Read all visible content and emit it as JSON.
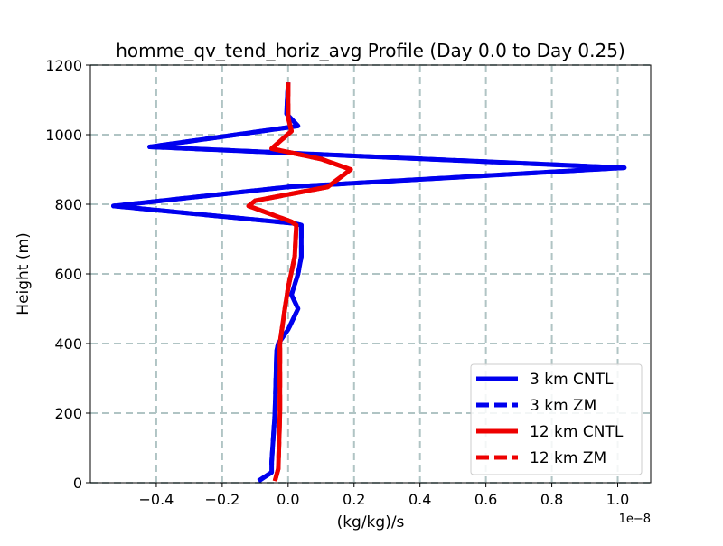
{
  "chart_data": {
    "type": "line",
    "title": "homme_qv_tend_horiz_avg Profile (Day 0.0 to Day 0.25)",
    "xlabel": "(kg/kg)/s",
    "ylabel": "Height (m)",
    "x_offset_label": "1e−8",
    "xlim": [
      -0.6,
      1.1
    ],
    "ylim": [
      0,
      1200
    ],
    "x_ticks": [
      -0.4,
      -0.2,
      0.0,
      0.2,
      0.4,
      0.6,
      0.8,
      1.0
    ],
    "x_tick_labels": [
      "−0.4",
      "−0.2",
      "0.0",
      "0.2",
      "0.4",
      "0.6",
      "0.8",
      "1.0"
    ],
    "y_ticks": [
      0,
      200,
      400,
      600,
      800,
      1000,
      1200
    ],
    "y_tick_labels": [
      "0",
      "200",
      "400",
      "600",
      "800",
      "1000",
      "1200"
    ],
    "grid": true,
    "legend_position": "lower-right",
    "colors": {
      "blue": "#0000ee",
      "red": "#ee0000",
      "grid": "#b0c4c4"
    },
    "series": [
      {
        "name": "3 km CNTL",
        "style": "solid",
        "color": "#0000ee",
        "points": [
          [
            -0.09,
            5
          ],
          [
            -0.05,
            30
          ],
          [
            -0.05,
            60
          ],
          [
            -0.04,
            200
          ],
          [
            -0.035,
            380
          ],
          [
            -0.03,
            400
          ],
          [
            0.0,
            440
          ],
          [
            0.03,
            500
          ],
          [
            0.01,
            540
          ],
          [
            0.03,
            600
          ],
          [
            0.04,
            650
          ],
          [
            0.04,
            740
          ],
          [
            0.02,
            745
          ],
          [
            -0.53,
            795
          ],
          [
            0.0,
            850
          ],
          [
            1.02,
            905
          ],
          [
            -0.42,
            965
          ],
          [
            0.03,
            1025
          ],
          [
            -0.005,
            1060
          ],
          [
            0.0,
            1150
          ]
        ]
      },
      {
        "name": "3 km ZM",
        "style": "dashed",
        "color": "#0000ee",
        "points": [
          [
            -0.09,
            5
          ],
          [
            -0.05,
            30
          ],
          [
            -0.05,
            60
          ],
          [
            -0.04,
            200
          ],
          [
            -0.035,
            380
          ],
          [
            -0.03,
            400
          ],
          [
            0.0,
            440
          ],
          [
            0.03,
            500
          ],
          [
            0.01,
            540
          ],
          [
            0.03,
            600
          ],
          [
            0.04,
            650
          ],
          [
            0.04,
            740
          ],
          [
            0.02,
            745
          ],
          [
            -0.53,
            795
          ],
          [
            0.0,
            850
          ],
          [
            1.02,
            905
          ],
          [
            -0.42,
            965
          ],
          [
            0.03,
            1025
          ],
          [
            -0.005,
            1060
          ],
          [
            0.0,
            1150
          ]
        ]
      },
      {
        "name": "12 km CNTL",
        "style": "solid",
        "color": "#ee0000",
        "points": [
          [
            -0.04,
            5
          ],
          [
            -0.03,
            40
          ],
          [
            -0.025,
            200
          ],
          [
            -0.025,
            400
          ],
          [
            -0.01,
            500
          ],
          [
            0.0,
            560
          ],
          [
            0.02,
            650
          ],
          [
            0.025,
            740
          ],
          [
            0.01,
            750
          ],
          [
            -0.12,
            795
          ],
          [
            -0.1,
            810
          ],
          [
            0.12,
            850
          ],
          [
            0.19,
            900
          ],
          [
            0.1,
            930
          ],
          [
            -0.05,
            960
          ],
          [
            -0.02,
            985
          ],
          [
            0.01,
            1010
          ],
          [
            0.0,
            1050
          ],
          [
            0.0,
            1150
          ]
        ]
      },
      {
        "name": "12 km ZM",
        "style": "dashed",
        "color": "#ee0000",
        "points": [
          [
            -0.04,
            5
          ],
          [
            -0.03,
            40
          ],
          [
            -0.025,
            200
          ],
          [
            -0.025,
            400
          ],
          [
            -0.01,
            500
          ],
          [
            0.0,
            560
          ],
          [
            0.02,
            650
          ],
          [
            0.025,
            740
          ],
          [
            0.01,
            750
          ],
          [
            -0.12,
            795
          ],
          [
            -0.1,
            810
          ],
          [
            0.12,
            850
          ],
          [
            0.19,
            900
          ],
          [
            0.1,
            930
          ],
          [
            -0.05,
            960
          ],
          [
            -0.02,
            985
          ],
          [
            0.01,
            1010
          ],
          [
            0.0,
            1050
          ],
          [
            0.0,
            1150
          ]
        ]
      }
    ]
  }
}
